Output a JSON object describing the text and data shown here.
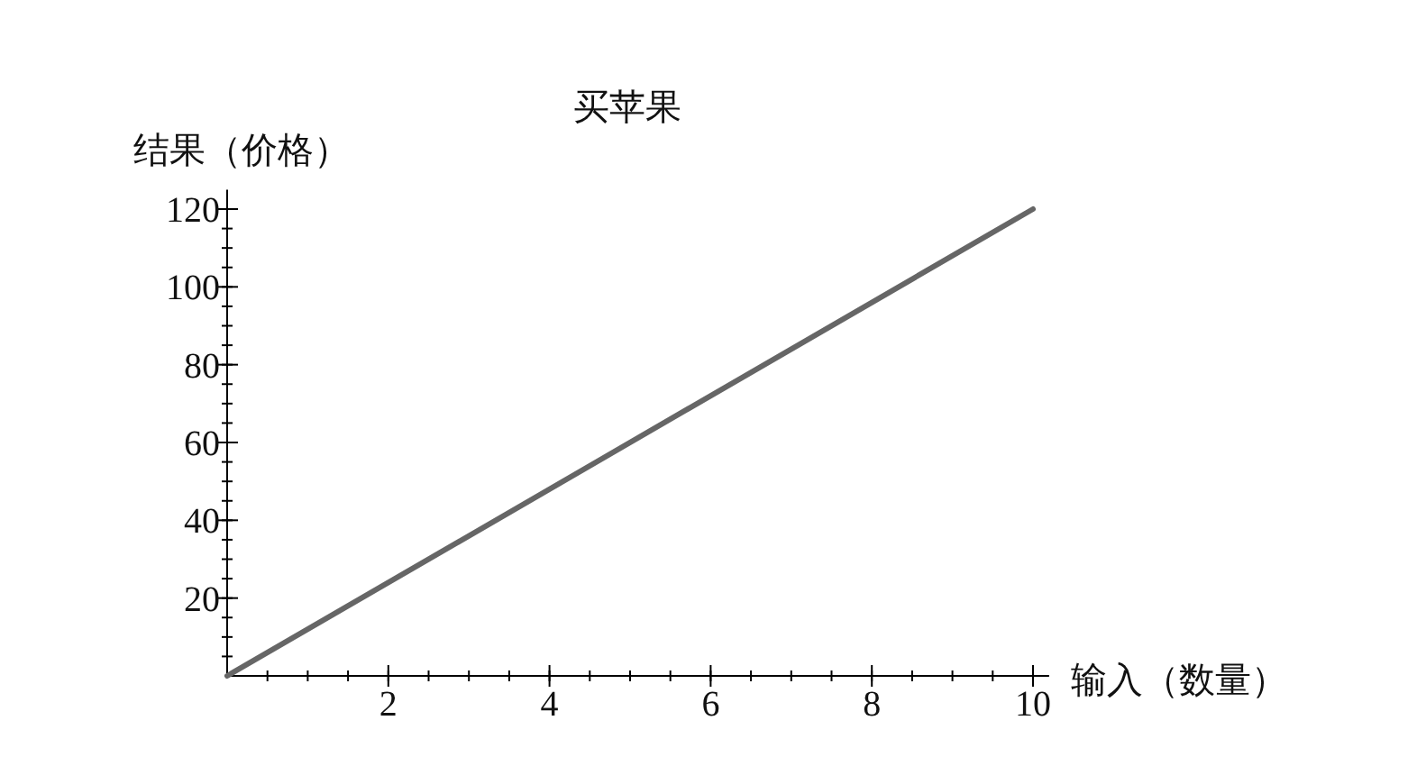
{
  "chart_data": {
    "type": "line",
    "title": "买苹果",
    "xlabel": "输入（数量）",
    "ylabel": "结果（价格）",
    "series": [
      {
        "color": "#666666",
        "x": [
          0,
          10
        ],
        "values": [
          0,
          120
        ]
      }
    ],
    "xlim": [
      0,
      10.2
    ],
    "ylim": [
      0,
      125
    ],
    "xticks": [
      2,
      4,
      6,
      8,
      10
    ],
    "yticks": [
      20,
      40,
      60,
      80,
      100,
      120
    ],
    "grid": false
  }
}
